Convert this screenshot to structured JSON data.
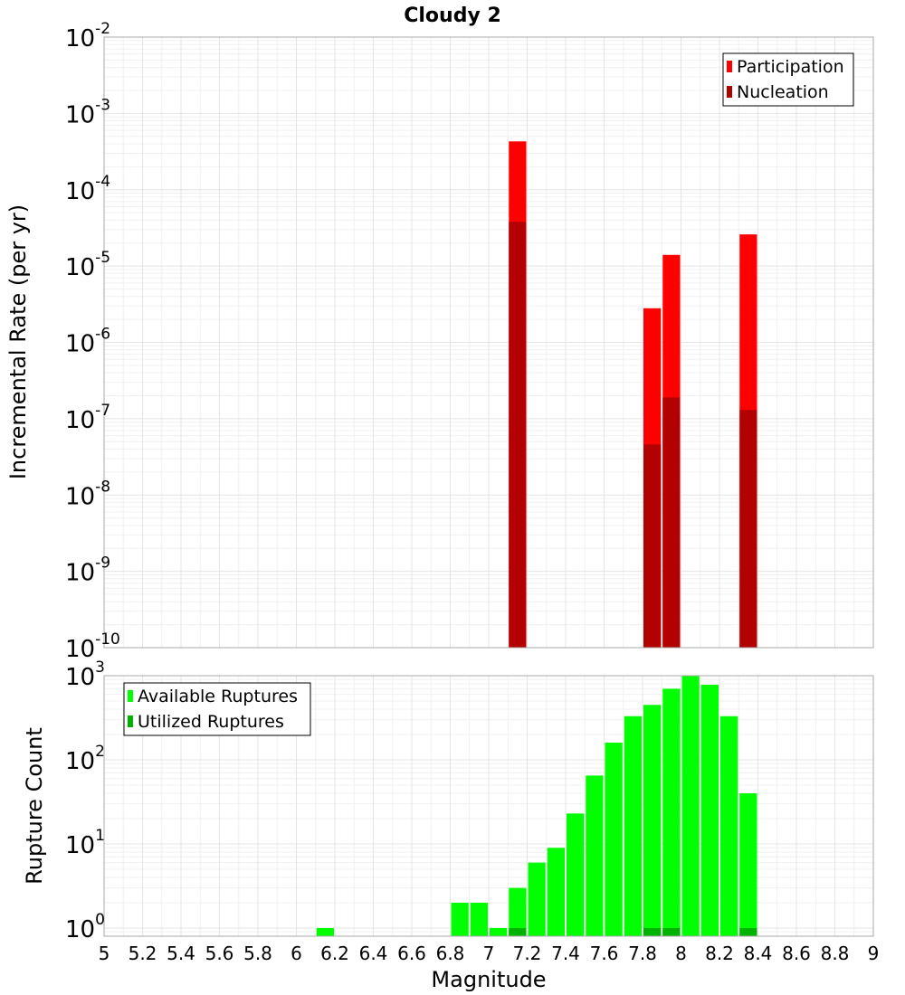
{
  "title": "Cloudy 2",
  "xlabel": "Magnitude",
  "x_ticks": [
    "5",
    "5.2",
    "5.4",
    "5.6",
    "5.8",
    "6",
    "6.2",
    "6.4",
    "6.6",
    "6.8",
    "7",
    "7.2",
    "7.4",
    "7.6",
    "7.8",
    "8",
    "8.2",
    "8.4",
    "8.6",
    "8.8",
    "9"
  ],
  "colors": {
    "participation": "#ff0000",
    "nucleation": "#b30000",
    "available": "#00ff00",
    "utilized": "#00b300"
  },
  "chart_data": [
    {
      "type": "bar",
      "ylabel": "Incremental Rate (per yr)",
      "xlim": [
        5,
        9
      ],
      "ylim": [
        1e-10,
        0.01
      ],
      "y_scale": "log",
      "y_tick_exponents": [
        "-10",
        "-9",
        "-8",
        "-7",
        "-6",
        "-5",
        "-4",
        "-3",
        "-2"
      ],
      "legend_position": "top-right",
      "grid": true,
      "series": [
        {
          "name": "Participation",
          "points": [
            {
              "x": 7.15,
              "y": 0.00043
            },
            {
              "x": 7.85,
              "y": 2.8e-06
            },
            {
              "x": 7.95,
              "y": 1.4e-05
            },
            {
              "x": 8.35,
              "y": 2.6e-05
            }
          ]
        },
        {
          "name": "Nucleation",
          "points": [
            {
              "x": 7.15,
              "y": 3.8e-05
            },
            {
              "x": 7.85,
              "y": 4.6e-08
            },
            {
              "x": 7.95,
              "y": 1.9e-07
            },
            {
              "x": 8.35,
              "y": 1.3e-07
            }
          ]
        }
      ]
    },
    {
      "type": "bar",
      "ylabel": "Rupture Count",
      "xlim": [
        5,
        9
      ],
      "ylim": [
        0.8,
        1000
      ],
      "y_scale": "log",
      "y_tick_exponents": [
        "0",
        "1",
        "2",
        "3"
      ],
      "legend_position": "top-left",
      "grid": true,
      "series": [
        {
          "name": "Available Ruptures",
          "points": [
            {
              "x": 6.15,
              "y": 1
            },
            {
              "x": 6.85,
              "y": 2
            },
            {
              "x": 6.95,
              "y": 2
            },
            {
              "x": 7.05,
              "y": 1
            },
            {
              "x": 7.15,
              "y": 3
            },
            {
              "x": 7.25,
              "y": 6
            },
            {
              "x": 7.35,
              "y": 9
            },
            {
              "x": 7.45,
              "y": 23
            },
            {
              "x": 7.55,
              "y": 65
            },
            {
              "x": 7.65,
              "y": 160
            },
            {
              "x": 7.75,
              "y": 330
            },
            {
              "x": 7.85,
              "y": 450
            },
            {
              "x": 7.95,
              "y": 700
            },
            {
              "x": 8.05,
              "y": 1000
            },
            {
              "x": 8.15,
              "y": 780
            },
            {
              "x": 8.25,
              "y": 330
            },
            {
              "x": 8.35,
              "y": 40
            }
          ]
        },
        {
          "name": "Utilized Ruptures",
          "points": [
            {
              "x": 7.15,
              "y": 1
            },
            {
              "x": 7.85,
              "y": 1
            },
            {
              "x": 7.95,
              "y": 1
            },
            {
              "x": 8.35,
              "y": 1
            }
          ]
        }
      ]
    }
  ]
}
